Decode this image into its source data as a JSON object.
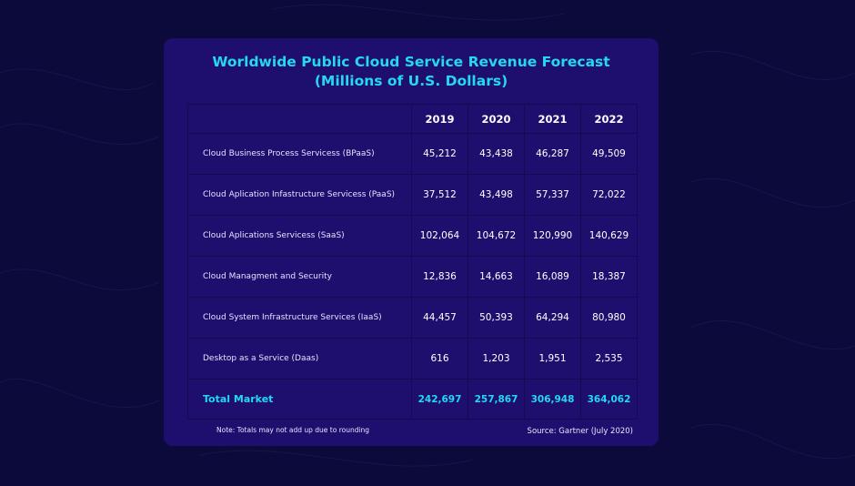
{
  "chart_data": {
    "type": "table",
    "title": "Worldwide Public Cloud Service Revenue Forecast",
    "subtitle": "(Millions of U.S. Dollars)",
    "columns": [
      "2019",
      "2020",
      "2021",
      "2022"
    ],
    "rows": [
      {
        "label": "Cloud Business Process Servicess (BPaaS)",
        "values": [
          "45,212",
          "43,438",
          "46,287",
          "49,509"
        ]
      },
      {
        "label": "Cloud  Aplication Infastructure Servicess (PaaS)",
        "values": [
          "37,512",
          "43,498",
          "57,337",
          "72,022"
        ]
      },
      {
        "label": "Cloud Aplications Servicess (SaaS)",
        "values": [
          "102,064",
          "104,672",
          "120,990",
          "140,629"
        ]
      },
      {
        "label": "Cloud Managment and Security",
        "values": [
          "12,836",
          "14,663",
          "16,089",
          "18,387"
        ]
      },
      {
        "label": "Cloud System Infrastructure Services (IaaS)",
        "values": [
          "44,457",
          "50,393",
          "64,294",
          "80,980"
        ]
      },
      {
        "label": "Desktop as a Service (Daas)",
        "values": [
          "616",
          "1,203",
          "1,951",
          "2,535"
        ]
      }
    ],
    "total": {
      "label": "Total Market",
      "values": [
        "242,697",
        "257,867",
        "306,948",
        "364,062"
      ]
    },
    "note": "Note: Totals may not add up due to rounding",
    "source": "Source: Gartner (July 2020)"
  },
  "colors": {
    "background": "#0b0a3a",
    "card": "#1e0f6e",
    "accent": "#25d8f0",
    "text": "#ffffff"
  }
}
